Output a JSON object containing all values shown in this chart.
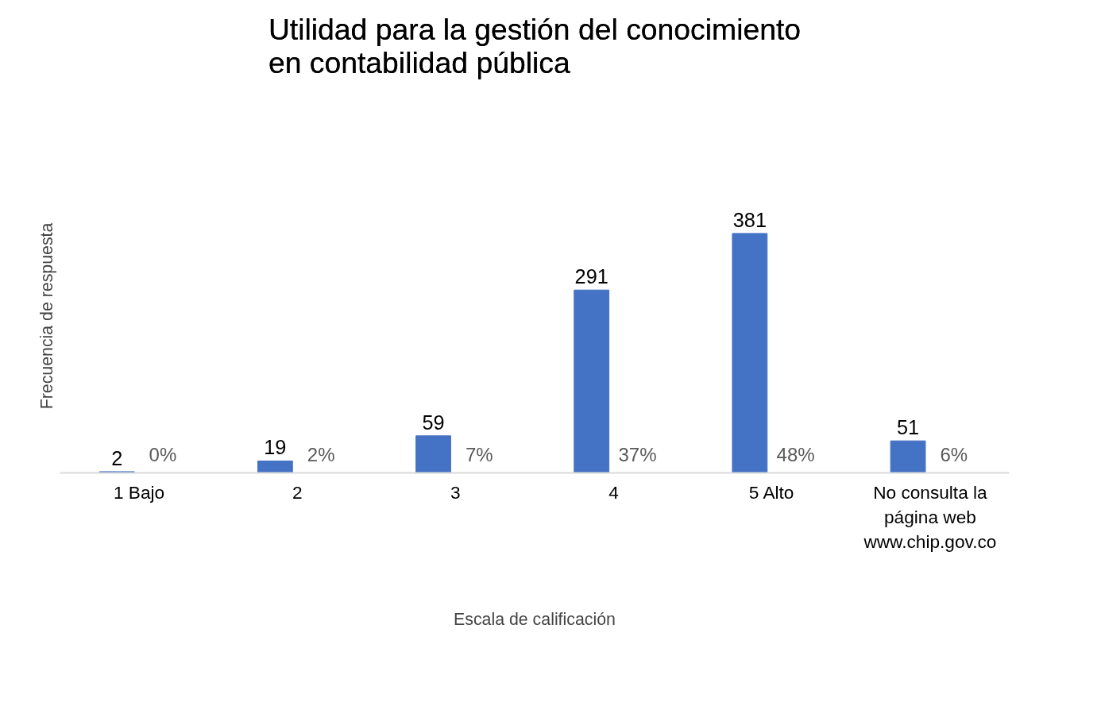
{
  "chart_data": {
    "type": "bar",
    "title": "Utilidad para la gestión del conocimiento en contabilidad pública",
    "xlabel": "Escala de calificación",
    "ylabel": "Frecuencia de respuesta",
    "categories": [
      "1 Bajo",
      "2",
      "3",
      "4",
      "5 Alto",
      "No consulta la página web www.chip.gov.co"
    ],
    "values": [
      2,
      19,
      59,
      291,
      381,
      51
    ],
    "color": "#4472c4",
    "data_labels": true,
    "tick_labels": "x",
    "annotations": [
      "0%",
      "2%",
      "7%",
      "37%",
      "48%",
      "6%"
    ]
  }
}
